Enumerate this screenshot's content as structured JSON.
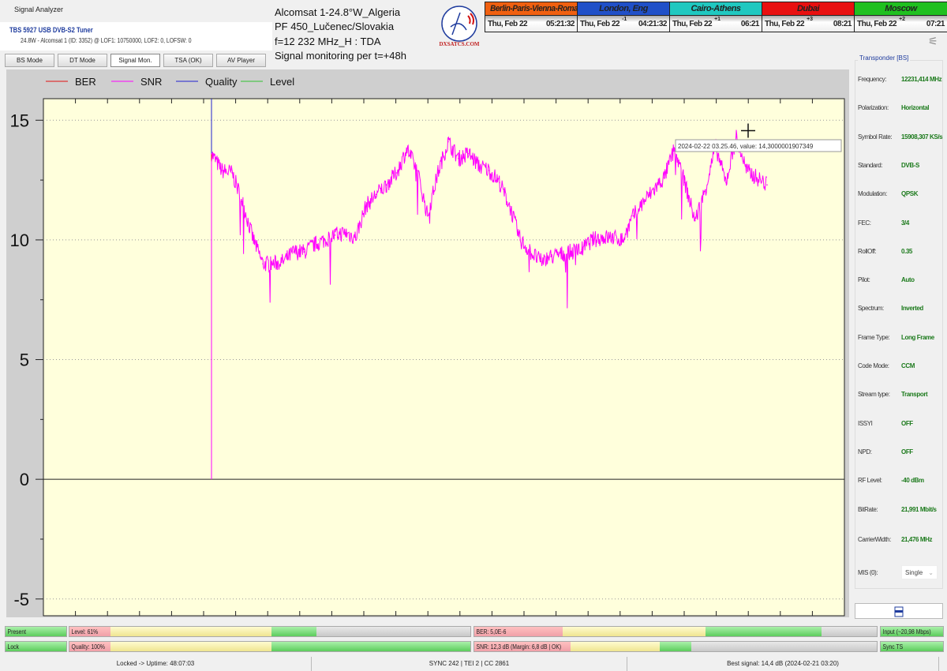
{
  "window": {
    "title": "Signal Analyzer"
  },
  "tuner": {
    "name": "TBS 5927 USB DVB-S2 Tuner",
    "details": "24.8W - Alcomsat 1 (ID: 3352) @ LOF1: 10750000, LOF2: 0, LOFSW: 0"
  },
  "info": {
    "line1": "Alcomsat 1-24.8°W_Algeria",
    "line2": "PF 450_Lučenec/Slovakia",
    "line3": "f=12 232 MHz_H : TDA",
    "line4": "Signal monitoring per t=+48h"
  },
  "logo": {
    "text": "DXSATCS.COM"
  },
  "tabs": [
    {
      "label": "BS Mode"
    },
    {
      "label": "DT Mode"
    },
    {
      "label": "Signal Mon.",
      "active": true
    },
    {
      "label": "TSA (OK)"
    },
    {
      "label": "AV Player"
    }
  ],
  "clocks": [
    {
      "city": "Berlin-Paris-Vienna-Roma",
      "date": "Thu, Feb 22",
      "offset": "",
      "time": "05:21:32",
      "color": "#f06010"
    },
    {
      "city": "London, Eng",
      "date": "Thu, Feb 22",
      "offset": "-1",
      "time": "04:21:32",
      "color": "#2050c8"
    },
    {
      "city": "Cairo-Athens",
      "date": "Thu, Feb 22",
      "offset": "+1",
      "time": "06:21",
      "color": "#20c8c0"
    },
    {
      "city": "Dubai",
      "date": "Thu, Feb 22",
      "offset": "+3",
      "time": "08:21",
      "color": "#e81010"
    },
    {
      "city": "Moscow",
      "date": "Thu, Feb 22",
      "offset": "+2",
      "time": "07:21",
      "color": "#20c020"
    }
  ],
  "chart_data": {
    "type": "line",
    "title": "",
    "xlabel": "",
    "ylabel": "",
    "ylim": [
      -5.7,
      15.9
    ],
    "yticks": [
      "15",
      "10",
      "5",
      "0",
      "-5"
    ],
    "grid": true,
    "legend": "top",
    "series": [
      {
        "name": "BER",
        "color": "#e01010",
        "values": []
      },
      {
        "name": "SNR",
        "color": "#ff00ff",
        "values": [
          13.6,
          12.9,
          12.8,
          11.6,
          10.1,
          9.0,
          9.0,
          9.1,
          9.5,
          9.5,
          9.8,
          10.0,
          10.2,
          10.3,
          10.1,
          11.4,
          11.9,
          12.3,
          12.8,
          13.8,
          12.9,
          11.0,
          12.8,
          14.1,
          13.4,
          13.6,
          13.1,
          12.9,
          12.4,
          11.4,
          10.0,
          9.5,
          9.1,
          9.3,
          9.4,
          9.5,
          9.6,
          10.0,
          10.1,
          10.1,
          10.0,
          11.0,
          11.6,
          12.1,
          12.6,
          13.8,
          12.4,
          10.8,
          12.1,
          13.9,
          12.4,
          14.3,
          12.9,
          12.6,
          12.3
        ]
      },
      {
        "name": "Quality",
        "color": "#2020d0",
        "values": []
      },
      {
        "name": "Level",
        "color": "#30c030",
        "values": []
      }
    ],
    "tooltip": "2024-02-22 03.25.46, value: 14,3000001907349"
  },
  "transponder": {
    "title": "Transponder [BS]",
    "rows": [
      {
        "label": "Frequency:",
        "value": "12231,414 MHz"
      },
      {
        "label": "Polarization:",
        "value": "Horizontal"
      },
      {
        "label": "Symbol Rate:",
        "value": "15908,307 KS/s"
      },
      {
        "label": "Standard:",
        "value": "DVB-S"
      },
      {
        "label": "Modulation:",
        "value": "QPSK"
      },
      {
        "label": "FEC:",
        "value": "3/4"
      },
      {
        "label": "RollOff:",
        "value": "0.35"
      },
      {
        "label": "Pilot:",
        "value": "Auto"
      },
      {
        "label": "Spectrum:",
        "value": "Inverted"
      },
      {
        "label": "Frame Type:",
        "value": "Long Frame"
      },
      {
        "label": "Code Mode:",
        "value": "CCM"
      },
      {
        "label": "Stream type:",
        "value": "Transport"
      },
      {
        "label": "ISSYI",
        "value": "OFF"
      },
      {
        "label": "NPD:",
        "value": "OFF"
      },
      {
        "label": "RF Level:",
        "value": "-40 dBm"
      },
      {
        "label": "BitRate:",
        "value": "21,991 Mbit/s"
      },
      {
        "label": "CarrierWidth:",
        "value": "21,476 MHz"
      }
    ],
    "mis_label": "MIS (0):",
    "mis_value": "Single"
  },
  "meters": {
    "present": "Present",
    "lock": "Lock",
    "level": {
      "label": "Level: 61%",
      "percent": 61
    },
    "quality": {
      "label": "Quality: 100%",
      "percent": 100
    },
    "ber": {
      "label": "BER: 5,0E-6"
    },
    "snr": {
      "label": "SNR: 12,3 dB (Margin: 6,8 dB | OK)"
    },
    "input": "Input (~20,98 Mbps)",
    "sync": "Sync TS"
  },
  "status": {
    "uptime": "Locked -> Uptime: 48:07:03",
    "sync": "SYNC 242 | TEI 2 | CC 2861",
    "best": "Best signal: 14,4 dB (2024-02-21 03:20)"
  }
}
